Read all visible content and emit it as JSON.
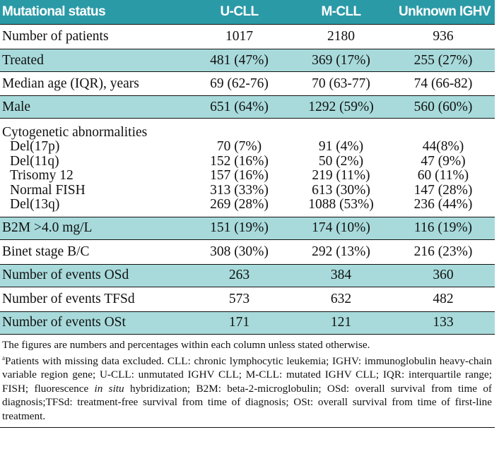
{
  "header": [
    "Mutational status",
    "U-CLL",
    "M-CLL",
    "Unknown IGHV"
  ],
  "rows": [
    {
      "label": "Number of patients",
      "u": "1017",
      "m": "2180",
      "x": "936"
    },
    {
      "label": "Treated",
      "u": "481 (47%)",
      "m": "369 (17%)",
      "x": "255 (27%)"
    },
    {
      "label": "Median age (IQR), years",
      "u": "69 (62-76)",
      "m": "70 (63-77)",
      "x": "74 (66-82)"
    },
    {
      "label": "Male",
      "u": "651 (64%)",
      "m": "1292 (59%)",
      "x": "560 (60%)"
    },
    {
      "label": "B2M >4.0 mg/L",
      "u": "151 (19%)",
      "m": "174 (10%)",
      "x": "116 (19%)"
    },
    {
      "label": "Binet stage B/C",
      "u": "308 (30%)",
      "m": "292 (13%)",
      "x": "216 (23%)"
    },
    {
      "label": "Number of events OSd",
      "u": "263",
      "m": "384",
      "x": "360"
    },
    {
      "label": "Number of events TFSd",
      "u": "573",
      "m": "632",
      "x": "482"
    },
    {
      "label": "Number of events OSt",
      "u": "171",
      "m": "121",
      "x": "133"
    }
  ],
  "cytogenetics": {
    "title": "Cytogenetic abnormalities",
    "rows": [
      {
        "label": "Del(17p)",
        "u": "70 (7%)",
        "m": "91 (4%)",
        "x": "44(8%)"
      },
      {
        "label": "Del(11q)",
        "u": "152 (16%)",
        "m": "50 (2%)",
        "x": "47 (9%)"
      },
      {
        "label": "Trisomy 12",
        "u": "157 (16%)",
        "m": "219 (11%)",
        "x": "60 (11%)"
      },
      {
        "label": "Normal FISH",
        "u": "313 (33%)",
        "m": "613 (30%)",
        "x": "147 (28%)"
      },
      {
        "label": "Del(13q)",
        "u": "269 (28%)",
        "m": "1088 (53%)",
        "x": "236 (44%)"
      }
    ]
  },
  "notes": {
    "line1": "The figures are numbers and percentages within each column unless stated otherwise.",
    "sup": "a",
    "line2_before_italic": "Patients with missing data excluded. CLL: chronic lymphocytic leukemia; IGHV: immunoglobulin heavy-chain variable region gene; U-CLL: unmutated IGHV CLL; M-CLL: mutated IGHV CLL; IQR: interquartile range; FISH; fluorescence ",
    "italic": "in situ",
    "line2_after_italic": " hybridization; B2M: beta-2-microglobulin; OSd: overall survival from time of diagnosis;TFSd: treatment-free survival from time of diagnosis; OSt: overall survival from time of first-line treatment."
  }
}
